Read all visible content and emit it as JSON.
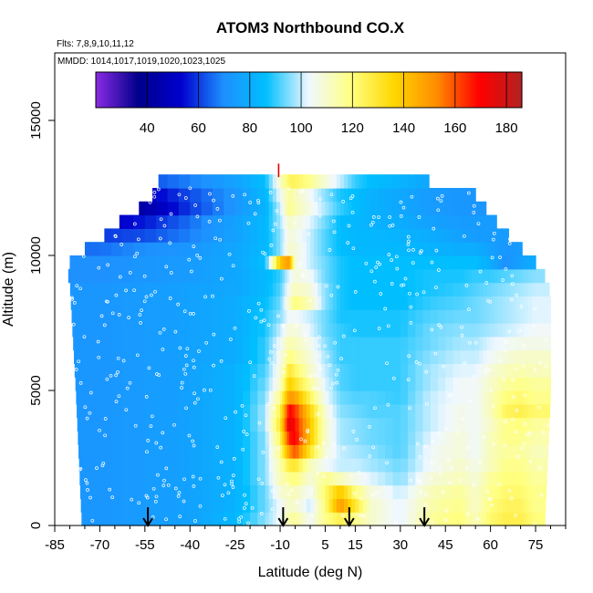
{
  "chart_data": {
    "type": "heatmap",
    "title": "ATOM3 Northbound CO.X",
    "subtitle_flights": "Flts: 7,8,9,10,11,12",
    "subtitle_dates": "MMDD: 1014,1017,1019,1020,1023,1025",
    "xlabel": "Latitude (deg N)",
    "ylabel": "Altitude (m)",
    "xlim": [
      -85,
      85
    ],
    "ylim": [
      0,
      17500
    ],
    "x_ticks": [
      -85,
      -70,
      -55,
      -40,
      -25,
      -10,
      5,
      15,
      30,
      45,
      60,
      75
    ],
    "y_ticks": [
      0,
      5000,
      10000,
      15000
    ],
    "colorbar": {
      "range": [
        20,
        186
      ],
      "ticks": [
        40,
        60,
        80,
        100,
        120,
        140,
        160,
        180
      ],
      "colors": [
        "#8a2be2",
        "#00008b",
        "#0000cd",
        "#1e90ff",
        "#00bfff",
        "#f0f8ff",
        "#ffff80",
        "#ffd700",
        "#ff8c00",
        "#ff0000",
        "#b22222"
      ]
    },
    "arrows_latitude": [
      -54,
      -9,
      13,
      38
    ],
    "altitude_levels": [
      0,
      500,
      1000,
      1500,
      2000,
      2500,
      3000,
      3500,
      4000,
      4500,
      5000,
      5500,
      6000,
      6500,
      7000,
      7500,
      8000,
      8500,
      9000,
      9500,
      10000,
      10500,
      11000,
      11500,
      12000,
      12500
    ],
    "profile_x": [
      -85,
      -70,
      -55,
      -40,
      -25,
      -15,
      -10,
      -7,
      -5,
      0,
      5,
      10,
      15,
      20,
      30,
      40,
      50,
      55,
      60,
      65,
      70,
      75,
      80
    ],
    "profile_values": [
      [
        72,
        72,
        74,
        76,
        84,
        96,
        104,
        114,
        116,
        104,
        118,
        126,
        118,
        110,
        102,
        116,
        120,
        112,
        122,
        126,
        126,
        120,
        120
      ],
      [
        72,
        72,
        74,
        76,
        82,
        94,
        104,
        110,
        110,
        100,
        120,
        150,
        130,
        110,
        102,
        114,
        118,
        110,
        120,
        124,
        124,
        118,
        118
      ],
      [
        72,
        72,
        74,
        76,
        82,
        94,
        108,
        112,
        112,
        104,
        122,
        140,
        120,
        108,
        100,
        112,
        116,
        110,
        118,
        122,
        122,
        118,
        118
      ],
      [
        72,
        72,
        74,
        76,
        82,
        96,
        112,
        118,
        120,
        108,
        118,
        112,
        106,
        102,
        96,
        108,
        112,
        108,
        116,
        120,
        120,
        116,
        116
      ],
      [
        72,
        72,
        74,
        76,
        82,
        96,
        114,
        128,
        130,
        112,
        104,
        100,
        100,
        98,
        94,
        104,
        110,
        106,
        112,
        118,
        118,
        114,
        114
      ],
      [
        72,
        72,
        74,
        76,
        82,
        96,
        118,
        150,
        160,
        130,
        108,
        100,
        98,
        96,
        92,
        104,
        108,
        104,
        112,
        116,
        116,
        112,
        112
      ],
      [
        72,
        72,
        74,
        76,
        82,
        96,
        124,
        166,
        170,
        140,
        110,
        98,
        96,
        94,
        92,
        102,
        108,
        104,
        112,
        118,
        118,
        114,
        114
      ],
      [
        72,
        72,
        74,
        76,
        82,
        98,
        130,
        176,
        168,
        140,
        110,
        98,
        96,
        94,
        92,
        100,
        106,
        104,
        110,
        118,
        120,
        116,
        116
      ],
      [
        72,
        72,
        74,
        76,
        82,
        98,
        126,
        170,
        164,
        136,
        108,
        96,
        94,
        92,
        92,
        100,
        106,
        104,
        112,
        124,
        126,
        122,
        122
      ],
      [
        72,
        72,
        74,
        76,
        82,
        96,
        118,
        150,
        148,
        124,
        104,
        94,
        92,
        92,
        90,
        100,
        104,
        104,
        112,
        120,
        122,
        118,
        118
      ],
      [
        72,
        72,
        74,
        76,
        82,
        94,
        110,
        138,
        132,
        116,
        102,
        92,
        90,
        90,
        90,
        98,
        104,
        104,
        110,
        116,
        118,
        116,
        116
      ],
      [
        72,
        72,
        74,
        76,
        82,
        92,
        108,
        130,
        124,
        110,
        100,
        92,
        90,
        90,
        90,
        98,
        102,
        102,
        108,
        112,
        114,
        112,
        112
      ],
      [
        72,
        72,
        74,
        76,
        80,
        90,
        106,
        120,
        116,
        108,
        98,
        90,
        90,
        90,
        90,
        96,
        100,
        100,
        104,
        108,
        110,
        110,
        110
      ],
      [
        72,
        72,
        74,
        76,
        80,
        90,
        104,
        114,
        112,
        106,
        96,
        90,
        90,
        90,
        90,
        94,
        98,
        98,
        102,
        104,
        106,
        106,
        106
      ],
      [
        72,
        72,
        74,
        76,
        80,
        88,
        100,
        108,
        108,
        102,
        94,
        90,
        88,
        88,
        88,
        94,
        96,
        96,
        98,
        100,
        102,
        104,
        104
      ],
      [
        72,
        72,
        74,
        76,
        80,
        88,
        96,
        104,
        104,
        100,
        94,
        88,
        88,
        88,
        88,
        92,
        94,
        94,
        96,
        98,
        100,
        102,
        102
      ],
      [
        72,
        72,
        74,
        76,
        80,
        86,
        94,
        110,
        120,
        112,
        96,
        88,
        86,
        86,
        86,
        90,
        92,
        94,
        96,
        98,
        100,
        102,
        102
      ],
      [
        72,
        72,
        74,
        76,
        78,
        84,
        92,
        106,
        112,
        108,
        96,
        88,
        86,
        86,
        86,
        88,
        90,
        92,
        94,
        96,
        98,
        100,
        100
      ],
      [
        70,
        70,
        72,
        74,
        78,
        84,
        90,
        102,
        108,
        104,
        94,
        88,
        86,
        86,
        86,
        88,
        88,
        90,
        90,
        92,
        94,
        96,
        96
      ],
      [
        70,
        70,
        72,
        74,
        78,
        86,
        140,
        150,
        108,
        100,
        94,
        88,
        86,
        86,
        86,
        86,
        86,
        86,
        80,
        70,
        76,
        80,
        80
      ],
      [
        66,
        66,
        70,
        72,
        78,
        84,
        96,
        110,
        108,
        100,
        92,
        86,
        84,
        84,
        84,
        82,
        80,
        80,
        76,
        72,
        74,
        76,
        76
      ],
      [
        60,
        60,
        62,
        68,
        76,
        84,
        96,
        108,
        106,
        100,
        92,
        86,
        84,
        84,
        82,
        80,
        76,
        74,
        74,
        74,
        74,
        74,
        74
      ],
      [
        50,
        50,
        56,
        66,
        76,
        84,
        98,
        110,
        108,
        102,
        94,
        86,
        84,
        82,
        80,
        76,
        74,
        74,
        74,
        74,
        74,
        74,
        74
      ],
      [
        40,
        40,
        44,
        60,
        72,
        82,
        100,
        118,
        114,
        106,
        98,
        90,
        86,
        82,
        78,
        74,
        72,
        72,
        72,
        72,
        72,
        72,
        72
      ],
      [
        44,
        44,
        50,
        62,
        72,
        84,
        104,
        116,
        112,
        104,
        96,
        88,
        86,
        82,
        78,
        74,
        72,
        72,
        72,
        72,
        72,
        72,
        72
      ],
      [
        60,
        60,
        62,
        68,
        76,
        86,
        110,
        124,
        124,
        118,
        108,
        100,
        90,
        86,
        82,
        78,
        76,
        76,
        76,
        76,
        76,
        76,
        76
      ]
    ],
    "coverage": {
      "south_edge": [
        [
          0,
          -76
        ],
        [
          5000,
          -78
        ],
        [
          9000,
          -80
        ],
        [
          9500,
          -81
        ],
        [
          10000,
          -79
        ],
        [
          10500,
          -71
        ],
        [
          11000,
          -66
        ],
        [
          11500,
          -61
        ],
        [
          12000,
          -53
        ],
        [
          12500,
          -52
        ],
        [
          13000,
          -49
        ]
      ],
      "north_edge": [
        [
          0,
          78
        ],
        [
          5000,
          80
        ],
        [
          8500,
          80
        ],
        [
          9000,
          79
        ],
        [
          9500,
          77
        ],
        [
          10000,
          73
        ],
        [
          10500,
          68
        ],
        [
          11000,
          64
        ],
        [
          11500,
          60
        ],
        [
          12000,
          57
        ],
        [
          12500,
          53
        ],
        [
          13000,
          26
        ]
      ]
    }
  }
}
